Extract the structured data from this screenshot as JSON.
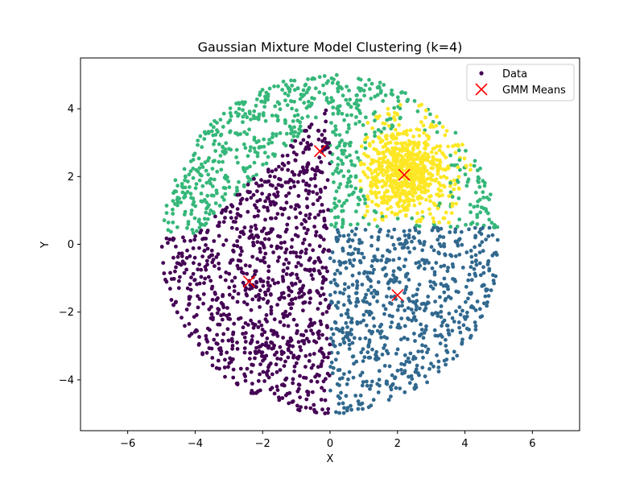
{
  "chart_data": {
    "type": "scatter",
    "title": "Gaussian Mixture Model Clustering (k=4)",
    "xlabel": "X",
    "ylabel": "Y",
    "xlim": [
      -7.4,
      7.4
    ],
    "ylim": [
      -5.5,
      5.5
    ],
    "xticks": [
      -6,
      -4,
      -2,
      0,
      2,
      4,
      6
    ],
    "yticks": [
      -4,
      -2,
      0,
      2,
      4
    ],
    "xtick_labels": [
      "−6",
      "−4",
      "−2",
      "0",
      "2",
      "4",
      "6"
    ],
    "ytick_labels": [
      "−4",
      "−2",
      "0",
      "2",
      "4"
    ],
    "grid": false,
    "legend_position": "top-right",
    "legend": [
      {
        "label": "Data",
        "marker": "dot",
        "color": "#440154"
      },
      {
        "label": "GMM Means",
        "marker": "x",
        "color": "#ff0000"
      }
    ],
    "data_region": {
      "shape": "disk",
      "center": [
        0,
        0
      ],
      "radius": 5
    },
    "clusters": [
      {
        "color": "#440154",
        "mean": [
          -2.4,
          -1.1
        ],
        "region": "left (x < 0, below upper-left boundary)"
      },
      {
        "color": "#31688e",
        "mean": [
          2.0,
          -1.5
        ],
        "region": "lower-right (x > 0, y < ~0.5)"
      },
      {
        "color": "#35b779",
        "mean": [
          -0.3,
          2.75
        ],
        "region": "top"
      },
      {
        "color": "#fde725",
        "mean": [
          2.2,
          2.05
        ],
        "region": "dense blob around (2, 2)"
      }
    ],
    "means": [
      {
        "x": -0.3,
        "y": 2.75
      },
      {
        "x": 2.2,
        "y": 2.05
      },
      {
        "x": -2.4,
        "y": -1.1
      },
      {
        "x": 2.0,
        "y": -1.5
      }
    ]
  }
}
